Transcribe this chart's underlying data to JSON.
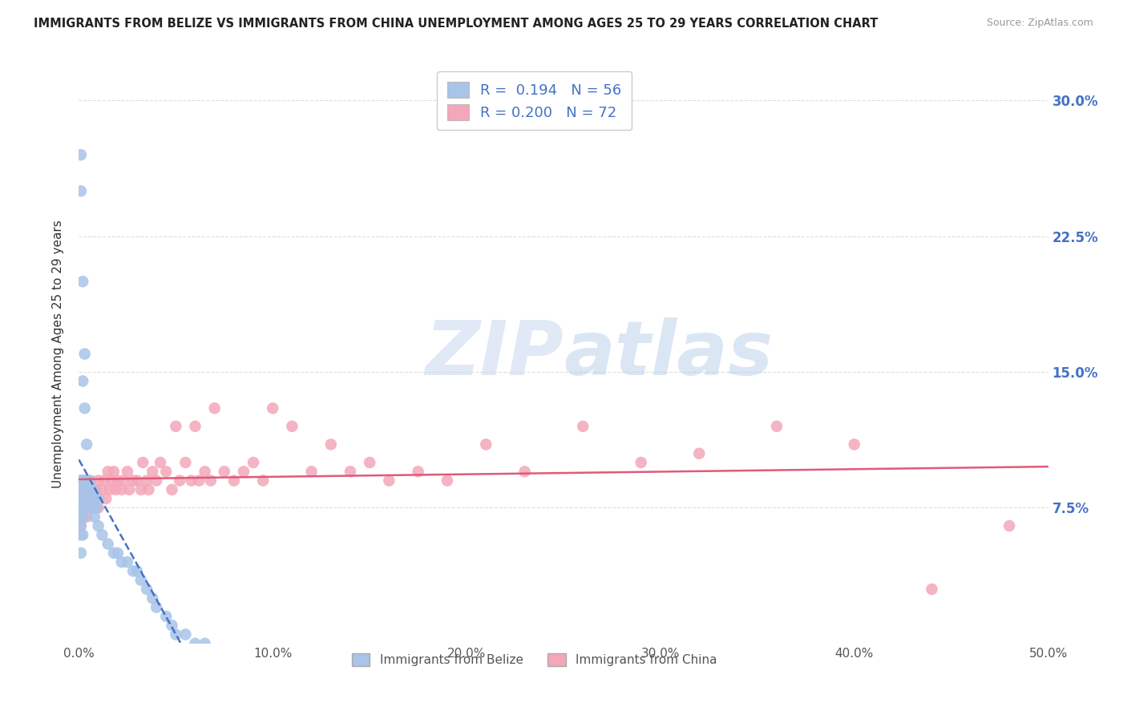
{
  "title": "IMMIGRANTS FROM BELIZE VS IMMIGRANTS FROM CHINA UNEMPLOYMENT AMONG AGES 25 TO 29 YEARS CORRELATION CHART",
  "source": "Source: ZipAtlas.com",
  "ylabel": "Unemployment Among Ages 25 to 29 years",
  "xlim": [
    0.0,
    0.5
  ],
  "ylim": [
    0.0,
    0.32
  ],
  "xticks": [
    0.0,
    0.1,
    0.2,
    0.3,
    0.4,
    0.5
  ],
  "xticklabels": [
    "0.0%",
    "10.0%",
    "20.0%",
    "30.0%",
    "40.0%",
    "50.0%"
  ],
  "yticks": [
    0.0,
    0.075,
    0.15,
    0.225,
    0.3
  ],
  "right_yticklabels": [
    "",
    "7.5%",
    "15.0%",
    "22.5%",
    "30.0%"
  ],
  "legend_label1": "Immigrants from Belize",
  "legend_label2": "Immigrants from China",
  "R1": "0.194",
  "N1": "56",
  "R2": "0.200",
  "N2": "72",
  "belize_color": "#a8c4e8",
  "china_color": "#f4a7b9",
  "belize_line_color": "#4472c4",
  "china_line_color": "#e05a7a",
  "belize_scatter_x": [
    0.001,
    0.001,
    0.001,
    0.001,
    0.001,
    0.001,
    0.001,
    0.001,
    0.001,
    0.001,
    0.002,
    0.002,
    0.002,
    0.002,
    0.002,
    0.002,
    0.002,
    0.002,
    0.003,
    0.003,
    0.003,
    0.003,
    0.003,
    0.004,
    0.004,
    0.004,
    0.005,
    0.005,
    0.005,
    0.006,
    0.006,
    0.007,
    0.007,
    0.008,
    0.008,
    0.009,
    0.01,
    0.01,
    0.012,
    0.015,
    0.018,
    0.02,
    0.022,
    0.025,
    0.028,
    0.03,
    0.032,
    0.035,
    0.038,
    0.04,
    0.045,
    0.048,
    0.05,
    0.055,
    0.06,
    0.065
  ],
  "belize_scatter_y": [
    0.27,
    0.25,
    0.09,
    0.085,
    0.08,
    0.075,
    0.07,
    0.065,
    0.06,
    0.05,
    0.2,
    0.145,
    0.09,
    0.085,
    0.08,
    0.075,
    0.07,
    0.06,
    0.16,
    0.13,
    0.09,
    0.085,
    0.075,
    0.11,
    0.09,
    0.08,
    0.09,
    0.085,
    0.075,
    0.085,
    0.075,
    0.085,
    0.075,
    0.08,
    0.07,
    0.075,
    0.08,
    0.065,
    0.06,
    0.055,
    0.05,
    0.05,
    0.045,
    0.045,
    0.04,
    0.04,
    0.035,
    0.03,
    0.025,
    0.02,
    0.015,
    0.01,
    0.005,
    0.005,
    0.0,
    0.0
  ],
  "china_scatter_x": [
    0.001,
    0.001,
    0.001,
    0.002,
    0.002,
    0.003,
    0.003,
    0.004,
    0.004,
    0.005,
    0.006,
    0.007,
    0.008,
    0.009,
    0.01,
    0.01,
    0.012,
    0.013,
    0.014,
    0.015,
    0.016,
    0.017,
    0.018,
    0.019,
    0.02,
    0.022,
    0.023,
    0.025,
    0.026,
    0.028,
    0.03,
    0.032,
    0.033,
    0.035,
    0.036,
    0.038,
    0.04,
    0.042,
    0.045,
    0.048,
    0.05,
    0.052,
    0.055,
    0.058,
    0.06,
    0.062,
    0.065,
    0.068,
    0.07,
    0.075,
    0.08,
    0.085,
    0.09,
    0.095,
    0.1,
    0.11,
    0.12,
    0.13,
    0.14,
    0.15,
    0.16,
    0.175,
    0.19,
    0.21,
    0.23,
    0.26,
    0.29,
    0.32,
    0.36,
    0.4,
    0.44,
    0.48
  ],
  "china_scatter_y": [
    0.09,
    0.08,
    0.065,
    0.085,
    0.07,
    0.09,
    0.075,
    0.085,
    0.07,
    0.08,
    0.09,
    0.075,
    0.08,
    0.085,
    0.09,
    0.075,
    0.085,
    0.09,
    0.08,
    0.095,
    0.085,
    0.09,
    0.095,
    0.085,
    0.09,
    0.085,
    0.09,
    0.095,
    0.085,
    0.09,
    0.09,
    0.085,
    0.1,
    0.09,
    0.085,
    0.095,
    0.09,
    0.1,
    0.095,
    0.085,
    0.12,
    0.09,
    0.1,
    0.09,
    0.12,
    0.09,
    0.095,
    0.09,
    0.13,
    0.095,
    0.09,
    0.095,
    0.1,
    0.09,
    0.13,
    0.12,
    0.095,
    0.11,
    0.095,
    0.1,
    0.09,
    0.095,
    0.09,
    0.11,
    0.095,
    0.12,
    0.1,
    0.105,
    0.12,
    0.11,
    0.03,
    0.065
  ],
  "watermark_zip": "ZIP",
  "watermark_atlas": "atlas",
  "background_color": "#ffffff",
  "grid_color": "#dddddd"
}
